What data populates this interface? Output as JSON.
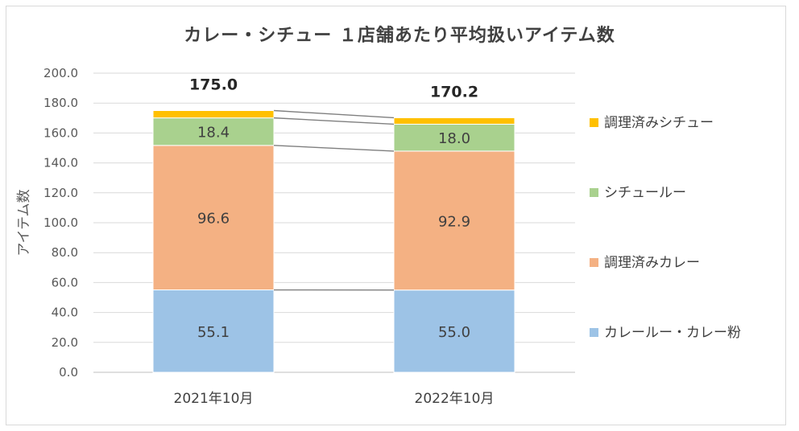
{
  "chart_data": {
    "type": "bar",
    "stacked": true,
    "title": "カレー・シチュー １店舗あたり平均扱いアイテム数",
    "ylabel": "アイテム数",
    "xlabel": "",
    "ylim": [
      0,
      200
    ],
    "yticks": [
      "0.0",
      "20.0",
      "40.0",
      "60.0",
      "80.0",
      "100.0",
      "120.0",
      "140.0",
      "160.0",
      "180.0",
      "200.0"
    ],
    "categories": [
      "2021年10月",
      "2022年10月"
    ],
    "series": [
      {
        "name": "カレールー・カレー粉",
        "values": [
          55.1,
          55.0
        ],
        "labels": [
          "55.1",
          "55.0"
        ],
        "color": "#9dc3e6"
      },
      {
        "name": "調理済みカレー",
        "values": [
          96.6,
          92.9
        ],
        "labels": [
          "96.6",
          "92.9"
        ],
        "color": "#f4b183"
      },
      {
        "name": "シチュールー",
        "values": [
          18.4,
          18.0
        ],
        "labels": [
          "18.4",
          "18.0"
        ],
        "color": "#a9d18e"
      },
      {
        "name": "調理済みシチュー",
        "values": [
          4.9,
          4.3
        ],
        "labels": [
          "",
          ""
        ],
        "color": "#ffc000"
      }
    ],
    "totals": [
      "175.0",
      "170.2"
    ],
    "grid": true,
    "legend_position": "right",
    "series_lines": true
  }
}
